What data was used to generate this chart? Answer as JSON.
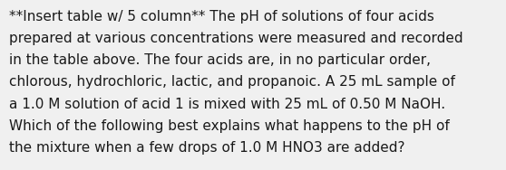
{
  "background_color": "#f0f0f0",
  "text_color": "#1a1a1a",
  "full_text": "**Insert table w/ 5 column** The pH of solutions of four acids prepared at various concentrations were measured and recorded in the table above. The four acids are, in no particular order, chlorous, hydrochloric, lactic, and propanoic. A 25 mL sample of a 1.0 M solution of acid 1 is mixed with 25 mL of 0.50 M NaOH. Which of the following best explains what happens to the pH of the mixture when a few drops of 1.0 M HNO3 are added?",
  "lines": [
    "**Insert table w/ 5 column** The pH of solutions of four acids",
    "prepared at various concentrations were measured and recorded",
    "in the table above. The four acids are, in no particular order,",
    "chlorous, hydrochloric, lactic, and propanoic. A 25 mL sample of",
    "a 1.0 M solution of acid 1 is mixed with 25 mL of 0.50 M NaOH.",
    "Which of the following best explains what happens to the pH of",
    "the mixture when a few drops of 1.0 M HNO3 are added?"
  ],
  "font_size": 11.0,
  "fig_width": 5.58,
  "fig_height": 1.88,
  "dpi": 100
}
